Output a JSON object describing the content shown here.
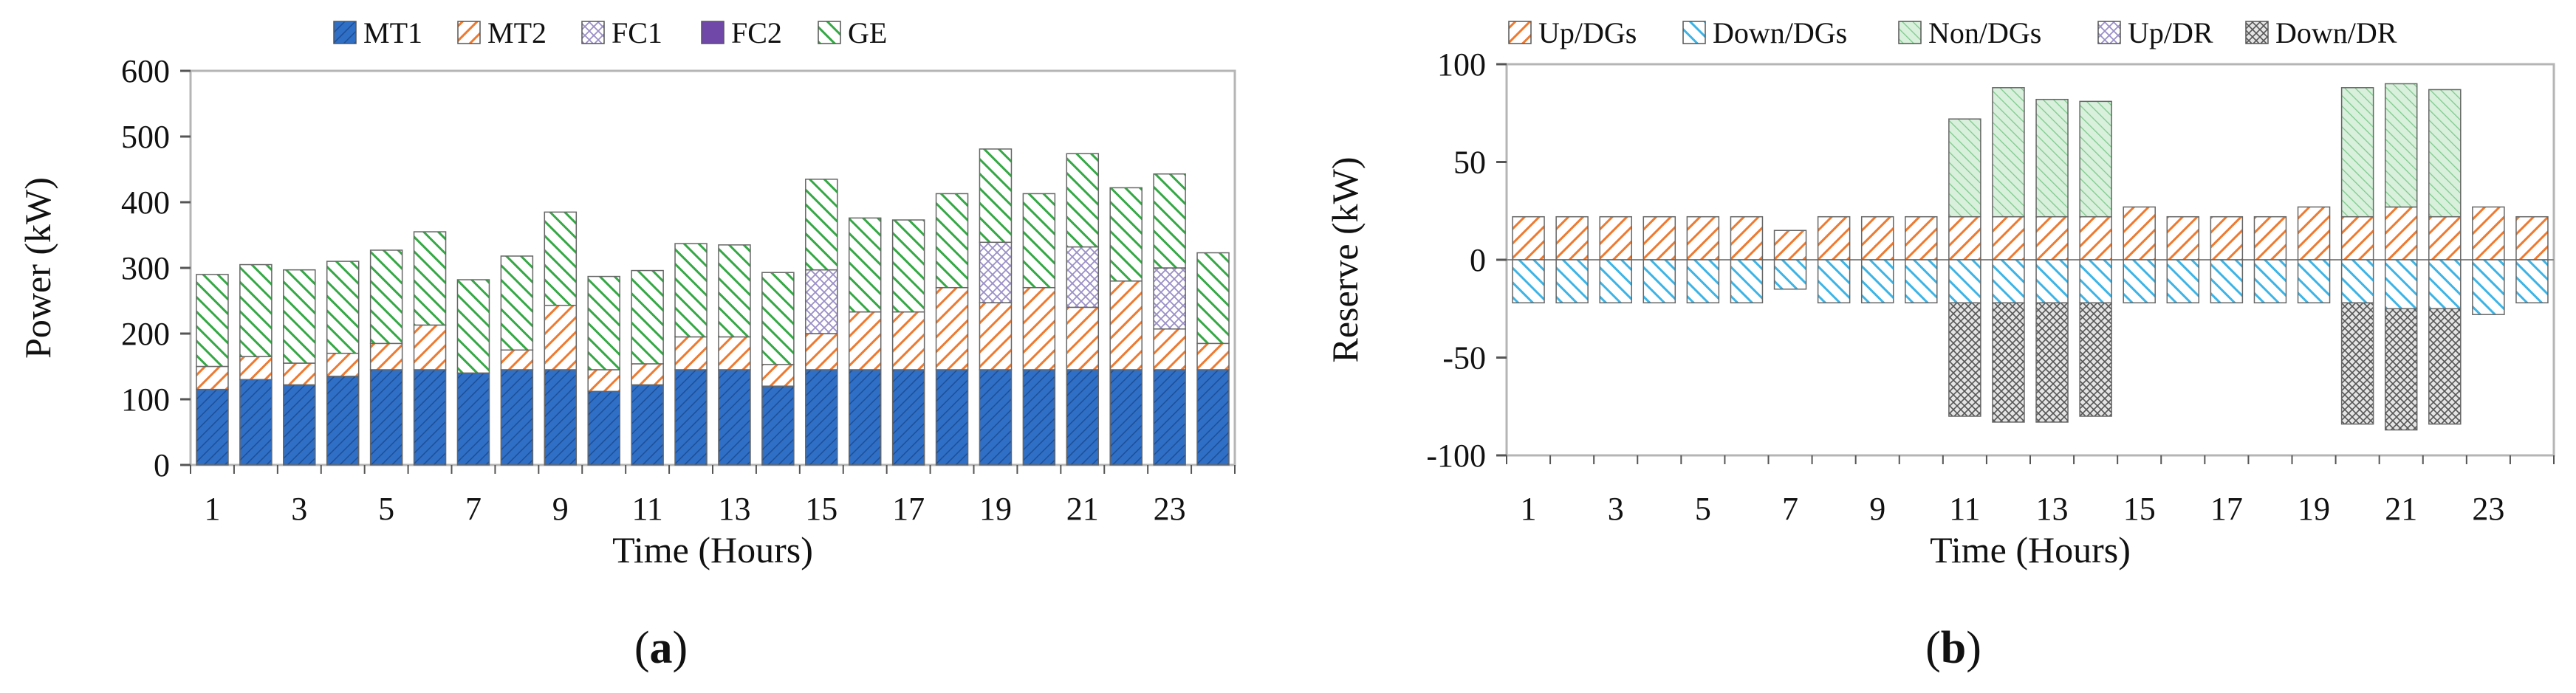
{
  "chart_data": [
    {
      "type": "bar",
      "stacked": true,
      "panel_label": {
        "open": "(",
        "letter": "a",
        "close": ")"
      },
      "xlabel": "Time (Hours)",
      "ylabel": "Power (kW)",
      "ylim": [
        0,
        600
      ],
      "yticks": [
        0,
        100,
        200,
        300,
        400,
        500,
        600
      ],
      "xtick_labels": [
        "1",
        "3",
        "5",
        "7",
        "9",
        "11",
        "13",
        "15",
        "17",
        "19",
        "21",
        "23"
      ],
      "x": [
        1,
        2,
        3,
        4,
        5,
        6,
        7,
        8,
        9,
        10,
        11,
        12,
        13,
        14,
        15,
        16,
        17,
        18,
        19,
        20,
        21,
        22,
        23,
        24
      ],
      "legend_position": "top",
      "grid": false,
      "series": [
        {
          "name": "MT1",
          "color": "#2f6fc6",
          "pattern": "hatch-dense",
          "values": [
            115,
            130,
            122,
            135,
            145,
            145,
            140,
            145,
            145,
            112,
            122,
            145,
            145,
            120,
            145,
            145,
            145,
            145,
            145,
            145,
            145,
            145,
            145,
            145
          ]
        },
        {
          "name": "MT2",
          "color": "#ee7a30",
          "pattern": "hatch",
          "values": [
            35,
            35,
            33,
            35,
            40,
            68,
            0,
            30,
            98,
            33,
            32,
            50,
            50,
            33,
            55,
            88,
            88,
            125,
            102,
            125,
            95,
            135,
            62,
            40
          ]
        },
        {
          "name": "FC1",
          "color": "#9b8fc7",
          "pattern": "crosshatch",
          "values": [
            0,
            0,
            0,
            0,
            0,
            0,
            0,
            0,
            0,
            0,
            0,
            0,
            0,
            0,
            97,
            0,
            0,
            0,
            92,
            0,
            92,
            0,
            93,
            0
          ]
        },
        {
          "name": "FC2",
          "color": "#7048a8",
          "pattern": "solid",
          "values": [
            0,
            0,
            0,
            0,
            0,
            0,
            0,
            0,
            0,
            0,
            0,
            0,
            0,
            0,
            0,
            0,
            0,
            0,
            0,
            0,
            0,
            0,
            0,
            0
          ]
        },
        {
          "name": "GE",
          "color": "#35a845",
          "pattern": "hatch",
          "values": [
            140,
            140,
            142,
            140,
            142,
            142,
            142,
            143,
            142,
            142,
            142,
            142,
            140,
            140,
            138,
            143,
            140,
            143,
            142,
            143,
            142,
            142,
            143,
            138
          ]
        }
      ]
    },
    {
      "type": "bar",
      "stacked": true,
      "panel_label": {
        "open": "(",
        "letter": "b",
        "close": ")"
      },
      "xlabel": "Time (Hours)",
      "ylabel": "Reserve (kW)",
      "ylim": [
        -100,
        100
      ],
      "yticks": [
        -100,
        -50,
        0,
        50,
        100
      ],
      "xtick_labels": [
        "1",
        "3",
        "5",
        "7",
        "9",
        "11",
        "13",
        "15",
        "17",
        "19",
        "21",
        "23"
      ],
      "x": [
        1,
        2,
        3,
        4,
        5,
        6,
        7,
        8,
        9,
        10,
        11,
        12,
        13,
        14,
        15,
        16,
        17,
        18,
        19,
        20,
        21,
        22,
        23,
        24
      ],
      "legend_position": "top",
      "grid": false,
      "series": [
        {
          "name": "Up/DGs",
          "color": "#ee7a30",
          "pattern": "hatch",
          "values": [
            22,
            22,
            22,
            22,
            22,
            22,
            15,
            22,
            22,
            22,
            22,
            22,
            22,
            22,
            27,
            22,
            22,
            22,
            27,
            22,
            27,
            22,
            27,
            22
          ]
        },
        {
          "name": "Down/DGs",
          "color": "#3cb4e6",
          "pattern": "hatch-back",
          "values": [
            -22,
            -22,
            -22,
            -22,
            -22,
            -22,
            -15,
            -22,
            -22,
            -22,
            -22,
            -22,
            -22,
            -22,
            -22,
            -22,
            -22,
            -22,
            -22,
            -22,
            -25,
            -25,
            -28,
            -22
          ]
        },
        {
          "name": "Non/DGs",
          "color": "#35a845",
          "pattern": "hatch-light",
          "values": [
            0,
            0,
            0,
            0,
            0,
            0,
            0,
            0,
            0,
            0,
            50,
            66,
            60,
            59,
            0,
            0,
            0,
            0,
            0,
            66,
            63,
            65,
            0,
            0
          ]
        },
        {
          "name": "Up/DR",
          "color": "#9b8fc7",
          "pattern": "crosshatch",
          "values": [
            0,
            0,
            0,
            0,
            0,
            0,
            0,
            0,
            0,
            0,
            0,
            0,
            0,
            0,
            0,
            0,
            0,
            0,
            0,
            0,
            0,
            0,
            0,
            0
          ]
        },
        {
          "name": "Down/DR",
          "color": "#777777",
          "pattern": "crosshatch-dark",
          "values": [
            0,
            0,
            0,
            0,
            0,
            0,
            0,
            0,
            0,
            0,
            -58,
            -61,
            -61,
            -58,
            0,
            0,
            0,
            0,
            0,
            -62,
            -62,
            -59,
            0,
            0
          ]
        }
      ]
    }
  ]
}
